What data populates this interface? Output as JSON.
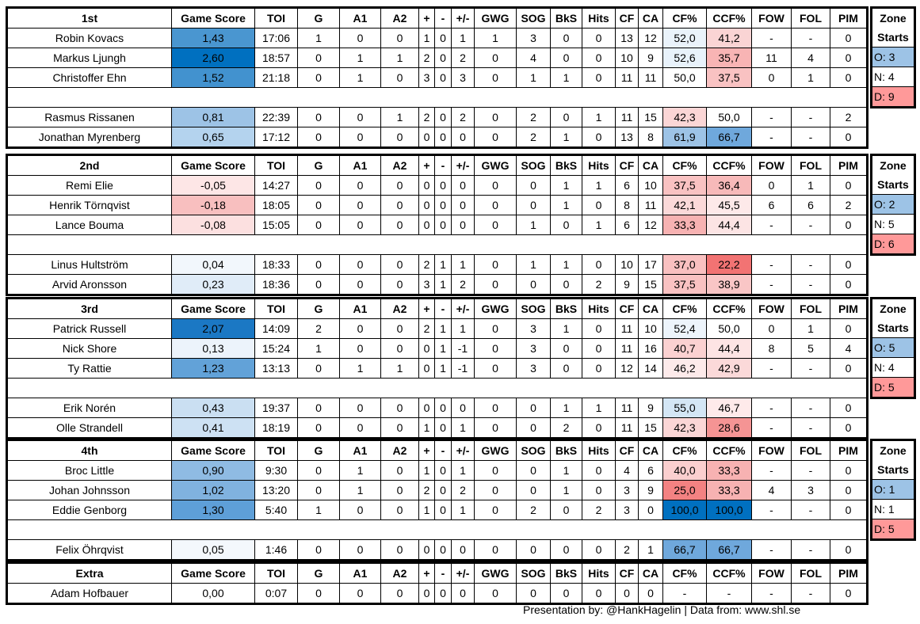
{
  "headers": [
    "Game Score",
    "TOI",
    "G",
    "A1",
    "A2",
    "+",
    "-",
    "+/-",
    "GWG",
    "SOG",
    "BkS",
    "Hits",
    "CF",
    "CA",
    "CF%",
    "CCF%",
    "FOW",
    "FOL",
    "PIM"
  ],
  "zone_labels": {
    "title1": "Zone",
    "title2": "Starts"
  },
  "colors": {
    "zone_o": "#9dc3e6",
    "zone_d": "#ff9999",
    "zone_n": "#ffffff"
  },
  "blocks": [
    {
      "label": "1st",
      "zone": {
        "o": "O: 3",
        "n": "N: 4",
        "d": "D: 9"
      },
      "players": [
        {
          "row": [
            "Robin Kovacs",
            "1,43",
            "17:06",
            "1",
            "0",
            "0",
            "1",
            "0",
            "1",
            "1",
            "3",
            "0",
            "0",
            "13",
            "12",
            "52,0",
            "41,2",
            "-",
            "-",
            "0"
          ],
          "gs_color": "#4a96d0",
          "cf_color": "#eaf3fb",
          "ccf_color": "#fad4d4"
        },
        {
          "row": [
            "Markus Ljungh",
            "2,60",
            "18:57",
            "0",
            "1",
            "1",
            "2",
            "0",
            "2",
            "0",
            "4",
            "0",
            "0",
            "10",
            "9",
            "52,6",
            "35,7",
            "11",
            "4",
            "0"
          ],
          "gs_color": "#0070c0",
          "cf_color": "#e8f2fb",
          "ccf_color": "#f8b4b4"
        },
        {
          "row": [
            "Christoffer Ehn",
            "1,52",
            "21:18",
            "0",
            "1",
            "0",
            "3",
            "0",
            "3",
            "0",
            "1",
            "1",
            "0",
            "11",
            "11",
            "50,0",
            "37,5",
            "0",
            "1",
            "0"
          ],
          "gs_color": "#4292cf",
          "cf_color": "#ffffff",
          "ccf_color": "#f9c2c2"
        },
        {
          "row": [
            "Rasmus Rissanen",
            "0,81",
            "22:39",
            "0",
            "0",
            "1",
            "2",
            "0",
            "2",
            "0",
            "2",
            "0",
            "1",
            "11",
            "15",
            "42,3",
            "50,0",
            "-",
            "-",
            "2"
          ],
          "gs_color": "#9dc3e6",
          "cf_color": "#fbd6d6",
          "ccf_color": "#ffffff"
        },
        {
          "row": [
            "Jonathan Myrenberg",
            "0,65",
            "17:12",
            "0",
            "0",
            "0",
            "0",
            "0",
            "0",
            "0",
            "2",
            "1",
            "0",
            "13",
            "8",
            "61,9",
            "66,7",
            "-",
            "-",
            "0"
          ],
          "gs_color": "#b4d3ee",
          "cf_color": "#9dc3e6",
          "ccf_color": "#6fa8dc"
        }
      ]
    },
    {
      "label": "2nd",
      "zone": {
        "o": "O: 2",
        "n": "N: 5",
        "d": "D: 6"
      },
      "players": [
        {
          "row": [
            "Remi Elie",
            "-0,05",
            "14:27",
            "0",
            "0",
            "0",
            "0",
            "0",
            "0",
            "0",
            "0",
            "1",
            "1",
            "6",
            "10",
            "37,5",
            "36,4",
            "0",
            "1",
            "0"
          ],
          "gs_color": "#fde6e6",
          "cf_color": "#f9c2c2",
          "ccf_color": "#f7b9b9"
        },
        {
          "row": [
            "Henrik Törnqvist",
            "-0,18",
            "18:05",
            "0",
            "0",
            "0",
            "0",
            "0",
            "0",
            "0",
            "0",
            "1",
            "0",
            "8",
            "11",
            "42,1",
            "45,5",
            "6",
            "6",
            "2"
          ],
          "gs_color": "#f8bfbf",
          "cf_color": "#fbd9d9",
          "ccf_color": "#fde9e9"
        },
        {
          "row": [
            "Lance Bouma",
            "-0,08",
            "15:05",
            "0",
            "0",
            "0",
            "0",
            "0",
            "0",
            "0",
            "1",
            "0",
            "1",
            "6",
            "12",
            "33,3",
            "44,4",
            "-",
            "-",
            "0"
          ],
          "gs_color": "#fce0e0",
          "cf_color": "#f7b2b2",
          "ccf_color": "#fce4e4"
        },
        {
          "row": [
            "Linus Hultström",
            "0,04",
            "18:33",
            "0",
            "0",
            "0",
            "2",
            "1",
            "1",
            "0",
            "1",
            "1",
            "0",
            "10",
            "17",
            "37,0",
            "22,2",
            "-",
            "-",
            "0"
          ],
          "gs_color": "#f2f7fc",
          "cf_color": "#f9c0c0",
          "ccf_color": "#f27373"
        },
        {
          "row": [
            "Arvid Aronsson",
            "0,23",
            "18:36",
            "0",
            "0",
            "0",
            "3",
            "1",
            "2",
            "0",
            "0",
            "0",
            "2",
            "9",
            "15",
            "37,5",
            "38,9",
            "-",
            "-",
            "0"
          ],
          "gs_color": "#e0ecf8",
          "cf_color": "#f9c2c2",
          "ccf_color": "#f9c6c6"
        }
      ]
    },
    {
      "label": "3rd",
      "zone": {
        "o": "O: 5",
        "n": "N: 4",
        "d": "D: 5"
      },
      "players": [
        {
          "row": [
            "Patrick Russell",
            "2,07",
            "14:09",
            "2",
            "0",
            "0",
            "2",
            "1",
            "1",
            "0",
            "3",
            "1",
            "0",
            "11",
            "10",
            "52,4",
            "50,0",
            "0",
            "1",
            "0"
          ],
          "gs_color": "#1b78c4",
          "cf_color": "#edf4fb",
          "ccf_color": "#ffffff"
        },
        {
          "row": [
            "Nick Shore",
            "0,13",
            "15:24",
            "1",
            "0",
            "0",
            "0",
            "1",
            "-1",
            "0",
            "3",
            "0",
            "0",
            "11",
            "16",
            "40,7",
            "44,4",
            "8",
            "5",
            "4"
          ],
          "gs_color": "#ecf3fb",
          "cf_color": "#fbd1d1",
          "ccf_color": "#fde4e4"
        },
        {
          "row": [
            "Ty Rattie",
            "1,23",
            "13:13",
            "0",
            "1",
            "1",
            "0",
            "1",
            "-1",
            "0",
            "3",
            "0",
            "0",
            "12",
            "14",
            "46,2",
            "42,9",
            "-",
            "-",
            "0"
          ],
          "gs_color": "#62a2d8",
          "cf_color": "#fdeaea",
          "ccf_color": "#fbd9d9"
        },
        {
          "row": [
            "Erik Norén",
            "0,43",
            "19:37",
            "0",
            "0",
            "0",
            "0",
            "0",
            "0",
            "0",
            "0",
            "1",
            "1",
            "11",
            "9",
            "55,0",
            "46,7",
            "-",
            "-",
            "0"
          ],
          "gs_color": "#cadff2",
          "cf_color": "#d4e6f5",
          "ccf_color": "#feeaea"
        },
        {
          "row": [
            "Olle Strandell",
            "0,41",
            "18:19",
            "0",
            "0",
            "0",
            "1",
            "0",
            "1",
            "0",
            "0",
            "2",
            "0",
            "11",
            "15",
            "42,3",
            "28,6",
            "-",
            "-",
            "0"
          ],
          "gs_color": "#cde1f3",
          "cf_color": "#fbd6d6",
          "ccf_color": "#f59494"
        }
      ]
    },
    {
      "label": "4th",
      "zone": {
        "o": "O: 1",
        "n": "N: 1",
        "d": "D: 5"
      },
      "players": [
        {
          "row": [
            "Broc Little",
            "0,90",
            "9:30",
            "0",
            "1",
            "0",
            "1",
            "0",
            "1",
            "0",
            "0",
            "1",
            "0",
            "4",
            "6",
            "40,0",
            "33,3",
            "-",
            "-",
            "0"
          ],
          "gs_color": "#8fbbe3",
          "cf_color": "#fbcfcf",
          "ccf_color": "#f7b2b2"
        },
        {
          "row": [
            "Johan Johnsson",
            "1,02",
            "13:20",
            "0",
            "1",
            "0",
            "2",
            "0",
            "2",
            "0",
            "0",
            "1",
            "0",
            "3",
            "9",
            "25,0",
            "33,3",
            "4",
            "3",
            "0"
          ],
          "gs_color": "#80b2df",
          "cf_color": "#f38282",
          "ccf_color": "#f7b2b2"
        },
        {
          "row": [
            "Eddie Genborg",
            "1,30",
            "5:40",
            "1",
            "0",
            "0",
            "1",
            "0",
            "1",
            "0",
            "2",
            "0",
            "2",
            "3",
            "0",
            "100,0",
            "100,0",
            "-",
            "-",
            "0"
          ],
          "gs_color": "#5e9fd8",
          "cf_color": "#0070c0",
          "ccf_color": "#0070c0"
        },
        {
          "row": [
            "Felix Öhrqvist",
            "0,05",
            "1:46",
            "0",
            "0",
            "0",
            "0",
            "0",
            "0",
            "0",
            "0",
            "0",
            "0",
            "2",
            "1",
            "66,7",
            "66,7",
            "-",
            "-",
            "0"
          ],
          "gs_color": "#f4f8fc",
          "cf_color": "#6fa8dc",
          "ccf_color": "#6fa8dc"
        }
      ]
    },
    {
      "label": "Extra",
      "players": [
        {
          "row": [
            "Adam Hofbauer",
            "0,00",
            "0:07",
            "0",
            "0",
            "0",
            "0",
            "0",
            "0",
            "0",
            "0",
            "0",
            "0",
            "0",
            "0",
            "-",
            "-",
            "-",
            "-",
            "0"
          ],
          "gs_color": "#ffffff",
          "cf_color": "#ffffff",
          "ccf_color": "#ffffff"
        }
      ]
    }
  ],
  "footer": "Presentation by: @HankHagelin | Data from: www.shl.se"
}
